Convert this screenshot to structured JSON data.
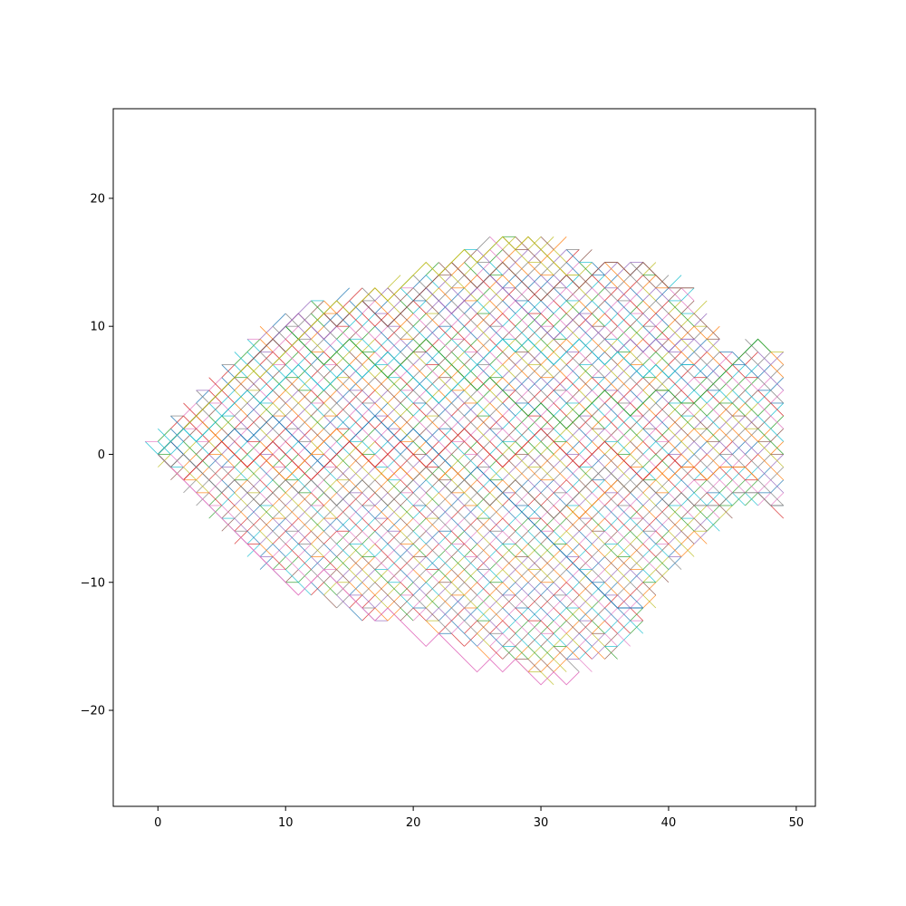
{
  "chart_data": {
    "type": "line",
    "title": "",
    "xlabel": "",
    "ylabel": "",
    "xlim": [
      -3.5,
      51.5
    ],
    "ylim": [
      -27.5,
      27
    ],
    "x_ticks": [
      0,
      10,
      20,
      30,
      40,
      50
    ],
    "y_ticks": [
      -20,
      -10,
      0,
      10,
      20
    ],
    "x_tick_labels": [
      "0",
      "10",
      "20",
      "30",
      "40",
      "50"
    ],
    "y_tick_labels": [
      "−20",
      "−10",
      "0",
      "10",
      "20"
    ],
    "grid": false,
    "legend": "none",
    "description_of_series": "many overlapping random walks on a triangular lattice starting at (0,0), step dx=1, dy=±1",
    "lattice": {
      "x_min": -1,
      "x_max": 49,
      "y_min": -18,
      "y_max": 17,
      "x_step": 1,
      "y_step": 1
    },
    "envelope_top": [
      [
        -1,
        1
      ],
      [
        5,
        7
      ],
      [
        8,
        10
      ],
      [
        12,
        12
      ],
      [
        20,
        14
      ],
      [
        22,
        15
      ],
      [
        26,
        17
      ],
      [
        31,
        17
      ],
      [
        35,
        15
      ],
      [
        38,
        15
      ],
      [
        42,
        13
      ],
      [
        44,
        10
      ],
      [
        45,
        8
      ],
      [
        46,
        9
      ],
      [
        47,
        9
      ],
      [
        48,
        8
      ]
    ],
    "envelope_bottom": [
      [
        -1,
        0
      ],
      [
        6,
        -7
      ],
      [
        8,
        -9
      ],
      [
        12,
        -11
      ],
      [
        16,
        -13
      ],
      [
        20,
        -13
      ],
      [
        24,
        -15
      ],
      [
        26,
        -16
      ],
      [
        29,
        -17
      ],
      [
        30,
        -18
      ],
      [
        32,
        -17
      ],
      [
        36,
        -16
      ],
      [
        38,
        -14
      ],
      [
        40,
        -10
      ],
      [
        44,
        -6
      ],
      [
        46,
        -4
      ],
      [
        49,
        -5
      ]
    ],
    "series": [
      {
        "color": "#1f77b4",
        "x": [
          0,
          1,
          2,
          3,
          4,
          5,
          6,
          7,
          8,
          9,
          10,
          11,
          12,
          13,
          14,
          15,
          16,
          17,
          18,
          19,
          20,
          21,
          22,
          23,
          24,
          25,
          26,
          27,
          28,
          29,
          30,
          31,
          32,
          33,
          34,
          35,
          36,
          37,
          38
        ],
        "y": [
          0,
          1,
          0,
          -1,
          0,
          1,
          2,
          1,
          2,
          3,
          2,
          1,
          0,
          -1,
          0,
          1,
          2,
          3,
          2,
          1,
          2,
          1,
          0,
          -1,
          -2,
          -1,
          -2,
          -3,
          -4,
          -5,
          -6,
          -7,
          -8,
          -9,
          -10,
          -11,
          -12,
          -12,
          -12
        ]
      },
      {
        "color": "#ff7f0e",
        "x": [
          0,
          1,
          2,
          3,
          4,
          5,
          6,
          7,
          8,
          9,
          10,
          11,
          12,
          13,
          14,
          15,
          16,
          17,
          18,
          19,
          20,
          21,
          22,
          23,
          24,
          25,
          26,
          27,
          28,
          29,
          30,
          31,
          32,
          33,
          34,
          35,
          36,
          37,
          38,
          39,
          40,
          41,
          42,
          43,
          44,
          45,
          46,
          47
        ],
        "y": [
          0,
          1,
          2,
          3,
          2,
          1,
          0,
          -1,
          0,
          -1,
          -2,
          -1,
          0,
          1,
          2,
          1,
          0,
          -1,
          -2,
          -1,
          -2,
          -1,
          -2,
          -1,
          -2,
          -3,
          -4,
          -3,
          -2,
          -3,
          -4,
          -5,
          -4,
          -5,
          -4,
          -3,
          -2,
          -3,
          -2,
          -1,
          -2,
          -1,
          -1,
          -2,
          -1,
          -1,
          -1,
          -2
        ]
      },
      {
        "color": "#2ca02c",
        "x": [
          0,
          1,
          2,
          3,
          4,
          5,
          6,
          7,
          8,
          9,
          10,
          11,
          12,
          13,
          14,
          15,
          16,
          17,
          18,
          19,
          20,
          21,
          22,
          23,
          24,
          25,
          26,
          27,
          28,
          29,
          30,
          31,
          32,
          33,
          34,
          35,
          36,
          37,
          38,
          39,
          40,
          41,
          42,
          43,
          44,
          45,
          46,
          47,
          48
        ],
        "y": [
          0,
          1,
          2,
          3,
          4,
          5,
          6,
          7,
          8,
          9,
          10,
          9,
          8,
          7,
          8,
          9,
          8,
          7,
          6,
          7,
          8,
          9,
          8,
          7,
          6,
          5,
          6,
          5,
          4,
          3,
          4,
          3,
          2,
          3,
          4,
          5,
          4,
          3,
          4,
          5,
          5,
          4,
          4,
          5,
          6,
          7,
          8,
          9,
          8
        ]
      },
      {
        "color": "#d62728",
        "x": [
          0,
          1,
          2,
          3,
          4,
          5,
          6,
          7,
          8,
          9,
          10,
          11,
          12,
          13,
          14,
          15,
          16,
          17,
          18,
          19,
          20,
          21,
          22,
          23,
          24,
          25,
          26,
          27,
          28,
          29,
          30,
          31,
          32,
          33,
          34,
          35,
          36,
          37,
          38,
          39,
          40,
          41
        ],
        "y": [
          0,
          -1,
          -2,
          -1,
          0,
          1,
          0,
          -1,
          0,
          1,
          0,
          -1,
          -2,
          -1,
          0,
          1,
          0,
          -1,
          0,
          1,
          0,
          -1,
          0,
          1,
          2,
          1,
          0,
          -1,
          0,
          1,
          2,
          1,
          0,
          -1,
          0,
          1,
          0,
          -1,
          -2,
          -1,
          0,
          -1
        ]
      },
      {
        "color": "#9467bd",
        "x": [
          0,
          1,
          2,
          3,
          4,
          5,
          6,
          7,
          8,
          9,
          10,
          11,
          12,
          13,
          14,
          15,
          16,
          17,
          18,
          19,
          20,
          21,
          22,
          23,
          24,
          25,
          26,
          27,
          28,
          29,
          30,
          31,
          32,
          33,
          34,
          35,
          36,
          37,
          38,
          39,
          40,
          41,
          42
        ],
        "y": [
          0,
          1,
          2,
          3,
          4,
          5,
          6,
          7,
          8,
          9,
          10,
          11,
          10,
          9,
          10,
          11,
          12,
          11,
          10,
          11,
          12,
          13,
          12,
          11,
          12,
          13,
          14,
          13,
          12,
          11,
          10,
          9,
          10,
          11,
          10,
          9,
          8,
          9,
          8,
          9,
          8,
          9,
          9
        ]
      },
      {
        "color": "#8c564b",
        "x": [
          0,
          1,
          2,
          3,
          4,
          5,
          6,
          7,
          8,
          9,
          10,
          11,
          12,
          13,
          14,
          15,
          16,
          17,
          18,
          19,
          20,
          21,
          22,
          23,
          24,
          25,
          26,
          27,
          28,
          29,
          30,
          31,
          32,
          33,
          34,
          35,
          36,
          37,
          38,
          39,
          40,
          41,
          42
        ],
        "y": [
          0,
          1,
          2,
          3,
          4,
          5,
          6,
          7,
          8,
          9,
          8,
          9,
          10,
          11,
          10,
          11,
          12,
          11,
          10,
          11,
          12,
          13,
          14,
          15,
          14,
          13,
          14,
          15,
          14,
          13,
          12,
          13,
          14,
          13,
          14,
          15,
          15,
          14,
          15,
          14,
          13,
          13,
          13
        ]
      },
      {
        "color": "#e377c2",
        "x": [
          0,
          1,
          2,
          3,
          4,
          5,
          6,
          7,
          8,
          9,
          10,
          11,
          12,
          13,
          14,
          15,
          16,
          17,
          18,
          19,
          20,
          21,
          22,
          23,
          24,
          25,
          26,
          27,
          28,
          29,
          30,
          31,
          32,
          33
        ],
        "y": [
          0,
          -1,
          -2,
          -3,
          -4,
          -5,
          -6,
          -7,
          -8,
          -9,
          -10,
          -11,
          -10,
          -9,
          -10,
          -11,
          -12,
          -13,
          -12,
          -13,
          -14,
          -15,
          -14,
          -15,
          -16,
          -17,
          -16,
          -17,
          -16,
          -17,
          -18,
          -17,
          -18,
          -17
        ]
      },
      {
        "color": "#7f7f7f",
        "x": [
          0,
          1,
          2,
          3,
          4,
          5,
          6,
          7,
          8,
          9,
          10,
          11,
          12,
          13,
          14,
          15,
          16,
          17,
          18,
          19,
          20,
          21,
          22,
          23,
          24,
          25,
          26,
          27,
          28,
          29,
          30,
          31,
          32,
          33,
          34,
          35,
          36,
          37,
          38,
          39,
          40,
          41,
          42,
          43,
          44,
          45,
          46,
          47,
          48,
          49
        ],
        "y": [
          0,
          -1,
          0,
          -1,
          -2,
          -3,
          -2,
          -3,
          -4,
          -3,
          -2,
          -3,
          -2,
          -3,
          -4,
          -3,
          -2,
          -3,
          -4,
          -3,
          -2,
          -1,
          -2,
          -3,
          -2,
          -3,
          -4,
          -3,
          -2,
          -3,
          -4,
          -5,
          -4,
          -3,
          -2,
          -1,
          -2,
          -3,
          -2,
          -3,
          -4,
          -3,
          -4,
          -4,
          -4,
          -3,
          -3,
          -3,
          -4,
          -4
        ]
      },
      {
        "color": "#bcbd22",
        "x": [
          0,
          1,
          2,
          3,
          4,
          5,
          6,
          7,
          8,
          9,
          10,
          11,
          12,
          13,
          14,
          15,
          16,
          17,
          18,
          19,
          20,
          21,
          22,
          23,
          24,
          25,
          26,
          27,
          28,
          29,
          30,
          31,
          32,
          33
        ],
        "y": [
          0,
          1,
          2,
          3,
          4,
          5,
          6,
          7,
          6,
          7,
          8,
          9,
          10,
          11,
          12,
          11,
          12,
          13,
          12,
          13,
          14,
          15,
          14,
          15,
          16,
          15,
          16,
          17,
          16,
          17,
          16,
          15,
          14,
          14
        ]
      },
      {
        "color": "#17becf",
        "x": [
          0,
          1,
          2,
          3,
          4,
          5,
          6,
          7,
          8,
          9,
          10,
          11,
          12,
          13,
          14,
          15,
          16,
          17,
          18,
          19,
          20,
          21,
          22,
          23,
          24,
          25,
          26,
          27,
          28,
          29,
          30,
          31,
          32,
          33,
          34,
          35,
          36,
          37,
          38,
          39,
          40,
          41,
          42
        ],
        "y": [
          0,
          1,
          2,
          1,
          2,
          3,
          4,
          5,
          4,
          5,
          6,
          7,
          6,
          5,
          6,
          7,
          6,
          7,
          8,
          7,
          6,
          5,
          4,
          5,
          6,
          7,
          8,
          9,
          8,
          9,
          8,
          7,
          8,
          9,
          8,
          7,
          8,
          7,
          6,
          7,
          6,
          7,
          7
        ]
      }
    ]
  }
}
